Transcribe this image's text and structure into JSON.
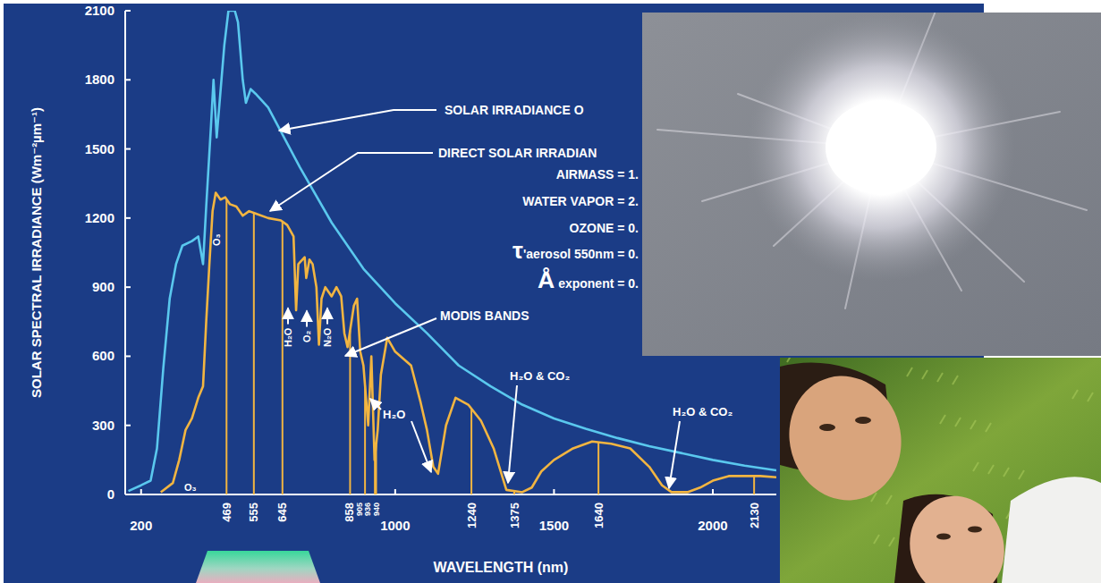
{
  "chart_data": {
    "type": "line",
    "xlabel": "WAVELENGTH (nm)",
    "ylabel": "SOLAR SPECTRAL IRRADIANCE (Wm⁻²µm⁻¹)",
    "xlim": [
      150,
      2200
    ],
    "ylim": [
      0,
      2100
    ],
    "xticks": [
      200,
      1000,
      1500,
      2000
    ],
    "yticks": [
      0,
      300,
      600,
      900,
      1200,
      1500,
      1800,
      2100
    ],
    "grid": false,
    "series": [
      {
        "name": "SOLAR IRRADIANCE O",
        "color": "#5ac8ee",
        "x": [
          160,
          200,
          230,
          250,
          270,
          290,
          310,
          330,
          360,
          380,
          395,
          405,
          420,
          428,
          438,
          450,
          462,
          475,
          495,
          505,
          520,
          530,
          545,
          560,
          600,
          650,
          700,
          800,
          900,
          1000,
          1100,
          1200,
          1300,
          1400,
          1500,
          1600,
          1700,
          1800,
          1900,
          2000,
          2100,
          2200
        ],
        "values": [
          15,
          40,
          60,
          200,
          550,
          850,
          1000,
          1080,
          1100,
          1120,
          1000,
          1250,
          1600,
          1800,
          1550,
          1750,
          1950,
          2100,
          2100,
          2050,
          1800,
          1700,
          1760,
          1740,
          1680,
          1550,
          1420,
          1180,
          980,
          830,
          700,
          560,
          470,
          390,
          330,
          285,
          245,
          210,
          180,
          150,
          125,
          105
        ]
      },
      {
        "name": "DIRECT SOLAR IRRADIAN",
        "color": "#f2b541",
        "x": [
          262,
          300,
          320,
          340,
          360,
          380,
          395,
          405,
          415,
          425,
          435,
          450,
          465,
          480,
          500,
          520,
          540,
          560,
          600,
          640,
          660,
          680,
          688,
          695,
          715,
          720,
          730,
          740,
          752,
          760,
          768,
          780,
          800,
          815,
          830,
          840,
          850,
          870,
          880,
          890,
          900,
          915,
          925,
          935,
          945,
          955,
          975,
          1000,
          1050,
          1080,
          1100,
          1120,
          1135,
          1160,
          1190,
          1230,
          1270,
          1310,
          1350,
          1400,
          1430,
          1460,
          1500,
          1560,
          1620,
          1680,
          1740,
          1800,
          1840,
          1870,
          1920,
          1960,
          2000,
          2050,
          2150,
          2200
        ],
        "values": [
          10,
          50,
          150,
          280,
          330,
          420,
          470,
          750,
          1000,
          1230,
          1310,
          1280,
          1290,
          1260,
          1250,
          1210,
          1230,
          1220,
          1200,
          1190,
          1170,
          1120,
          800,
          1000,
          1030,
          940,
          1020,
          1000,
          900,
          650,
          850,
          900,
          860,
          900,
          860,
          700,
          640,
          820,
          850,
          620,
          560,
          300,
          600,
          150,
          280,
          520,
          680,
          620,
          560,
          400,
          280,
          120,
          90,
          300,
          420,
          390,
          320,
          200,
          20,
          10,
          30,
          100,
          150,
          200,
          230,
          220,
          200,
          120,
          40,
          10,
          10,
          30,
          60,
          80,
          80,
          75
        ]
      }
    ],
    "bands": {
      "name": "MODIS BANDS",
      "color": "#f2b541",
      "values": [
        469,
        555,
        645,
        858,
        905,
        936,
        940,
        1240,
        1375,
        1640,
        2130
      ]
    },
    "annotations": [
      "O₃",
      "O₃",
      "H₂O",
      "O₂",
      "N₂O",
      "H₂O",
      "H₂O & CO₂",
      "H₂O & CO₂",
      "AIRMASS = 1.",
      "WATER VAPOR = 2.",
      "OZONE = 0.",
      "τ'aerosol 550nm = 0.",
      "Å exponent = 0."
    ]
  }
}
